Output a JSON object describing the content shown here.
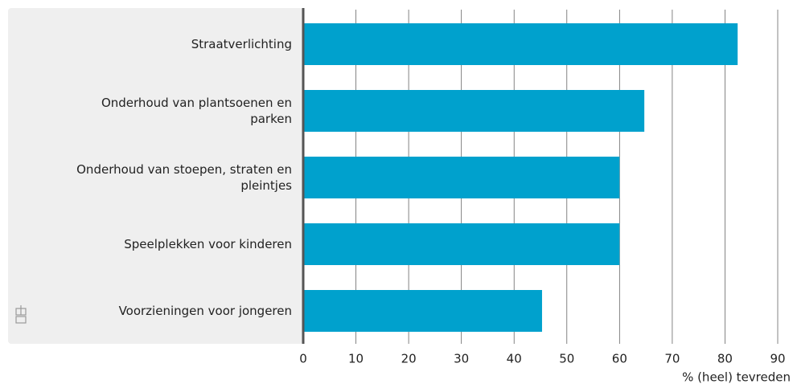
{
  "chart_data": {
    "type": "bar",
    "orientation": "horizontal",
    "categories": [
      "Straatverlichting",
      "Onderhoud van plantsoenen en parken",
      "Onderhoud van stoepen, straten en pleintjes",
      "Speelplekken voor kinderen",
      "Voorzieningen voor jongeren"
    ],
    "values": [
      82.4,
      64.7,
      60.0,
      60.0,
      45.3
    ],
    "color": "#00a1cd",
    "xlabel": "% (heel) tevreden",
    "xlim": [
      0,
      90
    ],
    "xticks": [
      0,
      10,
      20,
      30,
      40,
      50,
      60,
      70,
      80,
      90
    ],
    "grid": true
  }
}
